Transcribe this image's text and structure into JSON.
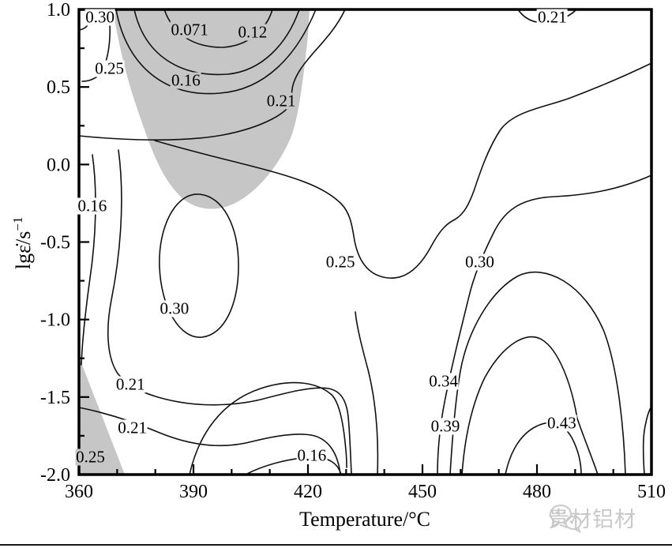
{
  "chart_data": {
    "type": "contour",
    "xlabel": "Temperature/°C",
    "ylabel": "lgε̇/s⁻¹",
    "ylabel_parts": {
      "prefix": "lg",
      "symbol": "ε̇",
      "unit": "/s",
      "exponent": "−1"
    },
    "xlim": [
      360,
      510
    ],
    "ylim": [
      -2.0,
      1.0
    ],
    "x_ticks": [
      "360",
      "390",
      "420",
      "450",
      "480",
      "510"
    ],
    "x_minor_ticks": [
      370,
      380,
      400,
      410,
      430,
      440,
      460,
      470,
      490,
      500
    ],
    "y_ticks": [
      "1.0",
      "0.5",
      "0.0",
      "-0.5",
      "-1.0",
      "-1.5",
      "-2.0"
    ],
    "y_tick_values": [
      1.0,
      0.5,
      0.0,
      -0.5,
      -1.0,
      -1.5,
      -2.0
    ],
    "y_minor_ticks": [
      0.75,
      0.25,
      -0.25,
      -0.75,
      -1.25,
      -1.75
    ],
    "grid": false,
    "legend": "none",
    "contour_labels": [
      {
        "value": "0.30",
        "t": 365.5,
        "lg": 0.95,
        "in_shade": false
      },
      {
        "value": "0.071",
        "t": 389.0,
        "lg": 0.87,
        "in_shade": true
      },
      {
        "value": "0.12",
        "t": 405.5,
        "lg": 0.85,
        "in_shade": true
      },
      {
        "value": "0.25",
        "t": 368.0,
        "lg": 0.62,
        "in_shade": false
      },
      {
        "value": "0.16",
        "t": 388.0,
        "lg": 0.54,
        "in_shade": true
      },
      {
        "value": "0.21",
        "t": 413.0,
        "lg": 0.41,
        "in_shade": true
      },
      {
        "value": "0.21",
        "t": 484.0,
        "lg": 0.95,
        "in_shade": false
      },
      {
        "value": "0.16",
        "t": 363.5,
        "lg": -0.27,
        "in_shade": false
      },
      {
        "value": "0.25",
        "t": 428.5,
        "lg": -0.63,
        "in_shade": false
      },
      {
        "value": "0.30",
        "t": 465.0,
        "lg": -0.63,
        "in_shade": false
      },
      {
        "value": "0.30",
        "t": 385.0,
        "lg": -0.93,
        "in_shade": false
      },
      {
        "value": "0.21",
        "t": 373.5,
        "lg": -1.42,
        "in_shade": false
      },
      {
        "value": "0.21",
        "t": 374.0,
        "lg": -1.7,
        "in_shade": false
      },
      {
        "value": "0.25",
        "t": 363.0,
        "lg": -1.89,
        "in_shade": true
      },
      {
        "value": "0.16",
        "t": 421.0,
        "lg": -1.88,
        "in_shade": false
      },
      {
        "value": "0.34",
        "t": 455.5,
        "lg": -1.4,
        "in_shade": false
      },
      {
        "value": "0.39",
        "t": 456.0,
        "lg": -1.69,
        "in_shade": false
      },
      {
        "value": "0.43",
        "t": 486.5,
        "lg": -1.67,
        "in_shade": false
      }
    ],
    "shaded_regions": [
      {
        "name": "instability-domain-upper",
        "color": "#c6c6c6",
        "approx": "T≈369–420°C, lgε̇≈-0.3…1.0"
      },
      {
        "name": "instability-domain-lower-left",
        "color": "#c6c6c6",
        "approx": "T≈360–372°C, lgε̇≈-1.55…-2.0"
      }
    ]
  },
  "watermark": {
    "text": "贵材铝材",
    "icon": "chat-bubbles-icon",
    "color": "#c9c9c9"
  },
  "colors": {
    "contour_line": "#101010",
    "axis": "#000000",
    "background": "#ffffff",
    "shade": "#c6c6c6",
    "divider": "#161616"
  }
}
